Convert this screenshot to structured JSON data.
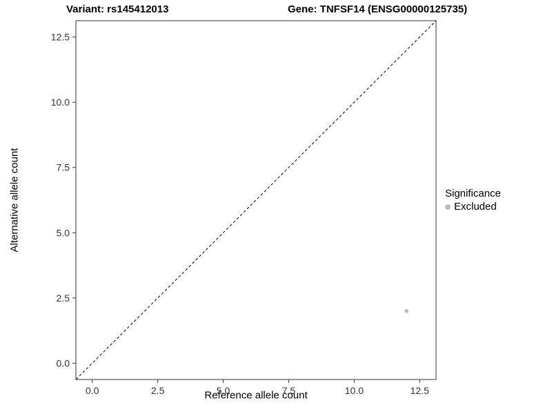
{
  "header": {
    "title_left": "Variant: rs145412013",
    "title_right": "Gene: TNFSF14 (ENSG00000125735)"
  },
  "chart_data": {
    "type": "scatter",
    "title_left": "Variant: rs145412013",
    "title_right": "Gene: TNFSF14 (ENSG00000125735)",
    "xlabel": "Reference allele count",
    "ylabel": "Alternative allele count",
    "xlim": [
      -0.625,
      13.125
    ],
    "ylim": [
      -0.625,
      13.125
    ],
    "xticks": [
      0.0,
      2.5,
      5.0,
      7.5,
      10.0,
      12.5
    ],
    "yticks": [
      0.0,
      2.5,
      5.0,
      7.5,
      10.0,
      12.5
    ],
    "grid": false,
    "panel_border_color": "#333333",
    "reference_line": {
      "kind": "diagonal-identity",
      "style": "dashed",
      "color": "#000000"
    },
    "series": [
      {
        "name": "Excluded",
        "color": "#bdbdbd",
        "points": [
          {
            "x": 12,
            "y": 2
          }
        ]
      }
    ],
    "legend": {
      "position": "right",
      "title": "Significance",
      "items": [
        {
          "label": "Excluded",
          "color": "#bdbdbd"
        }
      ]
    }
  }
}
